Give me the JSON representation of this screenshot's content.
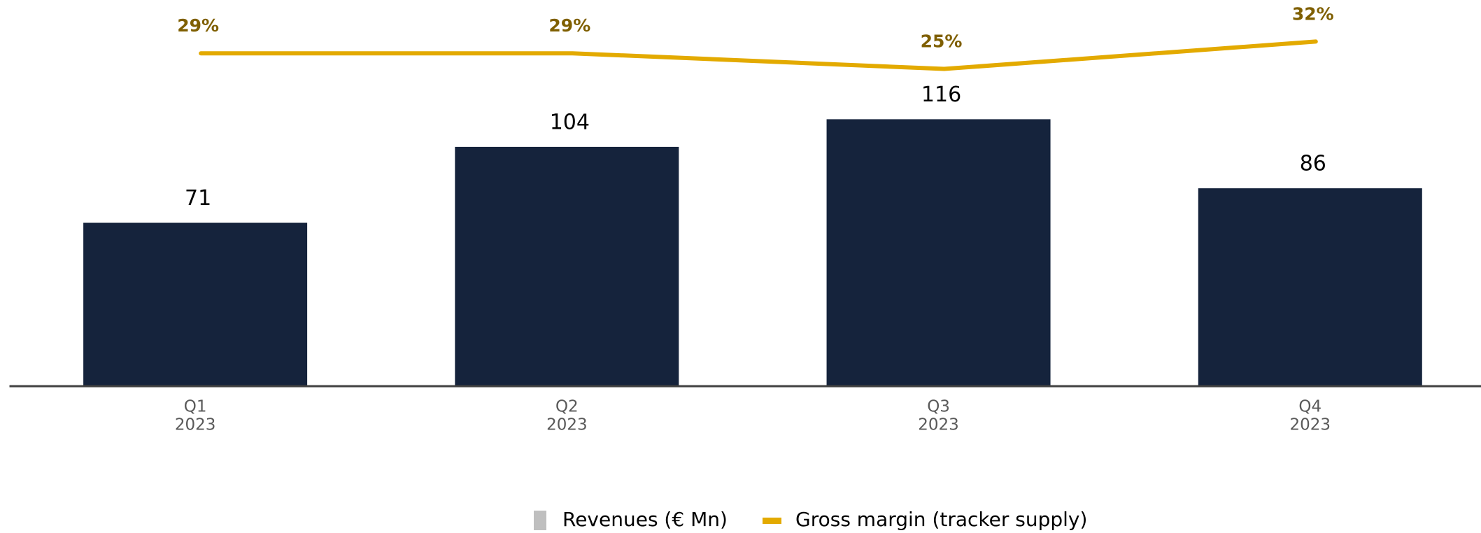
{
  "chart_data": {
    "type": "bar",
    "categories": [
      [
        "Q1",
        "2023"
      ],
      [
        "Q2",
        "2023"
      ],
      [
        "Q3",
        "2023"
      ],
      [
        "Q4",
        "2023"
      ]
    ],
    "series": [
      {
        "name": "Revenues (€ Mn)",
        "type": "bar",
        "color": "#15233c",
        "legend_color": "#bfbfbf",
        "values": [
          71,
          104,
          116,
          86
        ]
      },
      {
        "name": "Gross margin (tracker supply)",
        "type": "line",
        "axis": "y2",
        "color": "#e3aa00",
        "label_color": "#7f5f00",
        "values": [
          29,
          29,
          25,
          32
        ],
        "value_labels": [
          "29%",
          "29%",
          "25%",
          "32%"
        ]
      }
    ],
    "ylim": [
      0,
      160
    ],
    "y2lim": [
      20,
      35
    ],
    "grid": false,
    "legend": "bottom"
  }
}
